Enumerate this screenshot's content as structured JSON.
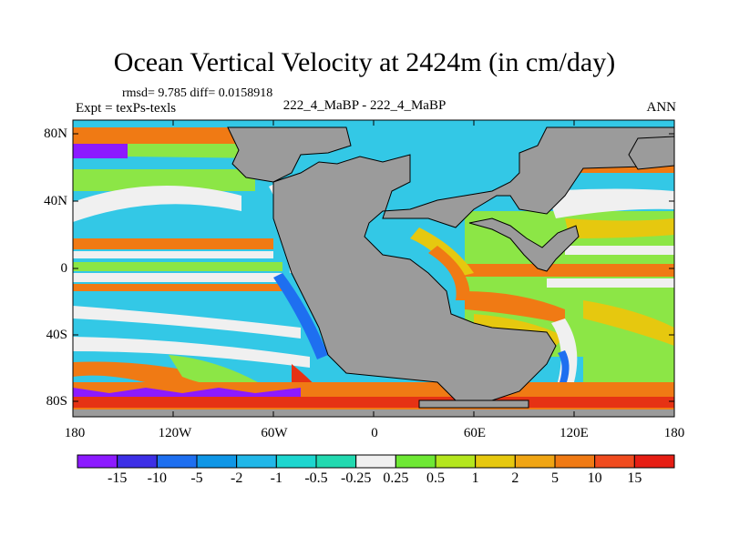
{
  "title": "Ocean Vertical Velocity at 2424m (in cm/day)",
  "stats": "rmsd= 9.785 diff= 0.0158918",
  "experiment": "Expt = texPs-texls",
  "center_label": "222_4_MaBP - 222_4_MaBP",
  "season": "ANN",
  "lat_labels": [
    "80N",
    "40N",
    "0",
    "40S",
    "80S"
  ],
  "lon_labels": [
    "180",
    "120W",
    "60W",
    "0",
    "60E",
    "120E",
    "180"
  ],
  "colorbar": {
    "labels": [
      "-15",
      "-10",
      "-5",
      "-2",
      "-1",
      "-0.5",
      "-0.25",
      "0.25",
      "0.5",
      "1",
      "2",
      "5",
      "10",
      "15"
    ],
    "colors": [
      "#8c1aff",
      "#3d2fe6",
      "#1e6ff0",
      "#0f96e6",
      "#21b7e8",
      "#1dd6cf",
      "#22d9b0",
      "#f0f0f0",
      "#6ee834",
      "#b4e61e",
      "#e6c80f",
      "#f0a514",
      "#f07a14",
      "#f04b1e",
      "#e61e14"
    ]
  },
  "palette": {
    "land": "#9b9b9b",
    "white": "#f0f0f0",
    "cyan": "#33c8e6",
    "lightblue": "#5ab4f0",
    "blue": "#1e6ff0",
    "green": "#8ce646",
    "yellow": "#e6c80f",
    "orange": "#f07a14",
    "red": "#e63214",
    "purple": "#8c1aff",
    "teal": "#26d6c2"
  }
}
